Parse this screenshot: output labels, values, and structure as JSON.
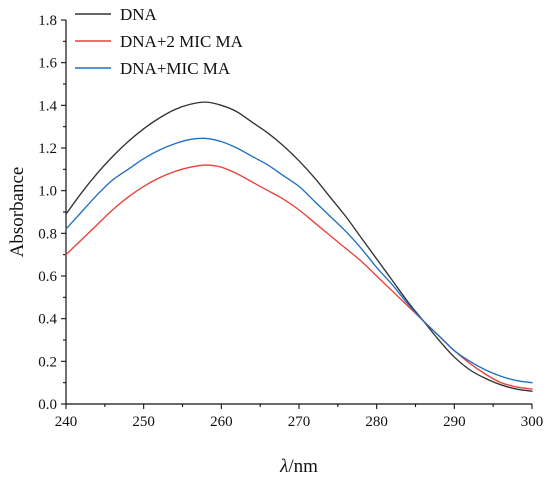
{
  "chart_data": {
    "type": "line",
    "title": "",
    "xlabel_symbol": "λ",
    "xlabel_unit": "/nm",
    "ylabel": "Absorbance",
    "xlim": [
      240,
      300
    ],
    "ylim": [
      0.0,
      1.8
    ],
    "x_ticks": [
      "240",
      "250",
      "260",
      "270",
      "280",
      "290",
      "300"
    ],
    "y_ticks": [
      "0.0",
      "0.2",
      "0.4",
      "0.6",
      "0.8",
      "1.0",
      "1.2",
      "1.4",
      "1.6",
      "1.8"
    ],
    "grid": false,
    "legend_position": "top-left",
    "series": [
      {
        "name": "DNA",
        "color": "#333333",
        "x": [
          240,
          242,
          244,
          246,
          248,
          250,
          252,
          254,
          256,
          258,
          260,
          262,
          264,
          266,
          268,
          270,
          272,
          274,
          276,
          278,
          280,
          282,
          284,
          286,
          288,
          290,
          292,
          294,
          296,
          298,
          300
        ],
        "values": [
          0.89,
          0.99,
          1.08,
          1.16,
          1.23,
          1.29,
          1.34,
          1.38,
          1.405,
          1.415,
          1.4,
          1.37,
          1.32,
          1.27,
          1.21,
          1.14,
          1.06,
          0.97,
          0.88,
          0.78,
          0.68,
          0.58,
          0.48,
          0.39,
          0.3,
          0.22,
          0.16,
          0.12,
          0.09,
          0.07,
          0.06
        ]
      },
      {
        "name": "DNA+2 MIC MA",
        "color": "#e8413b",
        "x": [
          240,
          242,
          244,
          246,
          248,
          250,
          252,
          254,
          256,
          258,
          260,
          262,
          264,
          266,
          268,
          270,
          272,
          274,
          276,
          278,
          280,
          282,
          284,
          286,
          288,
          290,
          292,
          294,
          296,
          298,
          300
        ],
        "values": [
          0.7,
          0.77,
          0.84,
          0.91,
          0.97,
          1.02,
          1.06,
          1.09,
          1.11,
          1.12,
          1.11,
          1.08,
          1.04,
          1.0,
          0.96,
          0.91,
          0.85,
          0.79,
          0.73,
          0.67,
          0.6,
          0.53,
          0.46,
          0.39,
          0.32,
          0.25,
          0.19,
          0.14,
          0.1,
          0.08,
          0.07
        ]
      },
      {
        "name": "DNA+MIC MA",
        "color": "#1f70c1",
        "x": [
          240,
          242,
          244,
          246,
          248,
          250,
          252,
          254,
          256,
          258,
          260,
          262,
          264,
          266,
          268,
          270,
          272,
          274,
          276,
          278,
          280,
          282,
          284,
          286,
          288,
          290,
          292,
          294,
          296,
          298,
          300
        ],
        "values": [
          0.82,
          0.9,
          0.98,
          1.05,
          1.1,
          1.15,
          1.19,
          1.22,
          1.24,
          1.245,
          1.23,
          1.2,
          1.16,
          1.12,
          1.07,
          1.02,
          0.95,
          0.88,
          0.81,
          0.73,
          0.64,
          0.56,
          0.47,
          0.39,
          0.32,
          0.25,
          0.2,
          0.16,
          0.13,
          0.11,
          0.1
        ]
      }
    ]
  }
}
